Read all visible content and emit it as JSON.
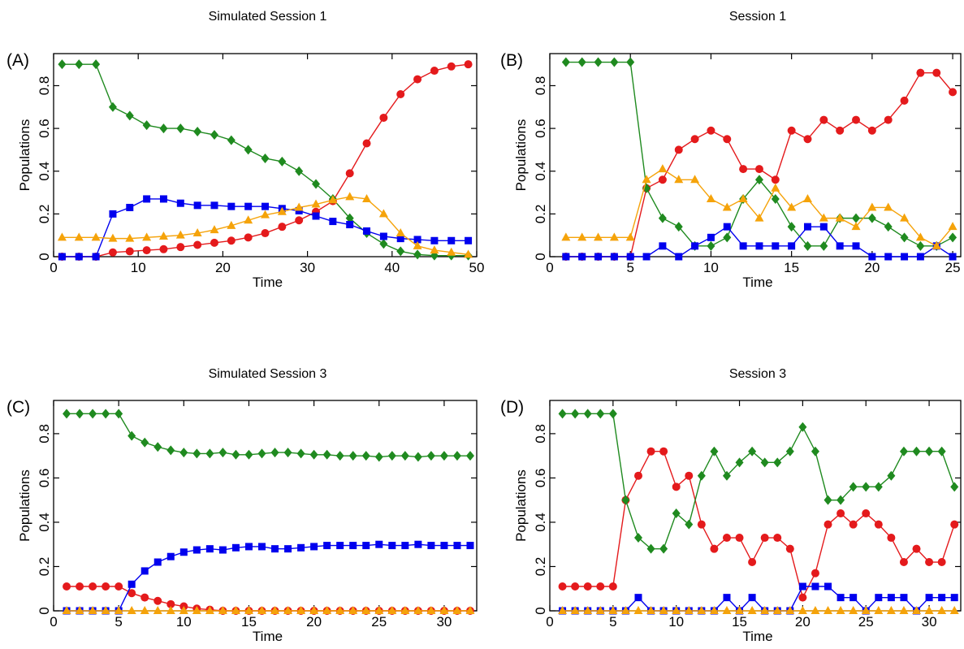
{
  "chart_data": [
    {
      "panel_label": "(A)",
      "type": "line",
      "title": "Simulated Session 1",
      "xlabel": "Time",
      "ylabel": "Populations",
      "xlim": [
        0,
        50
      ],
      "ylim": [
        0,
        0.95
      ],
      "xticks": [
        0,
        10,
        20,
        30,
        40,
        50
      ],
      "yticks": [
        0,
        0.2,
        0.4,
        0.6,
        0.8
      ],
      "ytick_labels": [
        "0",
        "0.2",
        "0.4",
        "0.6",
        "0.8"
      ],
      "x": [
        1,
        3,
        5,
        7,
        9,
        11,
        13,
        15,
        17,
        19,
        21,
        23,
        25,
        27,
        29,
        31,
        33,
        35,
        37,
        39,
        41,
        43,
        45,
        47,
        49
      ],
      "series": [
        {
          "color": "#e41a1c",
          "marker": "circle",
          "values": [
            0,
            0,
            0,
            0.02,
            0.025,
            0.03,
            0.035,
            0.045,
            0.055,
            0.065,
            0.075,
            0.09,
            0.11,
            0.14,
            0.17,
            0.21,
            0.26,
            0.39,
            0.53,
            0.65,
            0.76,
            0.83,
            0.87,
            0.89,
            0.9
          ]
        },
        {
          "color": "#1f8a1f",
          "marker": "diamond",
          "values": [
            0.9,
            0.9,
            0.9,
            0.7,
            0.66,
            0.615,
            0.6,
            0.6,
            0.585,
            0.57,
            0.545,
            0.5,
            0.46,
            0.445,
            0.4,
            0.34,
            0.27,
            0.18,
            0.11,
            0.06,
            0.025,
            0.01,
            0.005,
            0.005,
            0.005
          ]
        },
        {
          "color": "#0000ee",
          "marker": "square",
          "values": [
            0,
            0,
            0,
            0.2,
            0.23,
            0.27,
            0.27,
            0.25,
            0.24,
            0.24,
            0.235,
            0.235,
            0.235,
            0.225,
            0.215,
            0.19,
            0.165,
            0.15,
            0.12,
            0.095,
            0.085,
            0.08,
            0.075,
            0.075,
            0.075
          ]
        },
        {
          "color": "#f5a30a",
          "marker": "triangle",
          "values": [
            0.09,
            0.09,
            0.09,
            0.085,
            0.085,
            0.09,
            0.095,
            0.1,
            0.11,
            0.125,
            0.145,
            0.17,
            0.195,
            0.21,
            0.23,
            0.245,
            0.265,
            0.28,
            0.27,
            0.2,
            0.11,
            0.05,
            0.03,
            0.02,
            0.01
          ]
        }
      ]
    },
    {
      "panel_label": "(B)",
      "type": "line",
      "title": "Session 1",
      "xlabel": "Time",
      "ylabel": "Populations",
      "xlim": [
        0,
        25.5
      ],
      "ylim": [
        0,
        0.95
      ],
      "xticks": [
        0,
        5,
        10,
        15,
        20,
        25
      ],
      "yticks": [
        0,
        0.2,
        0.4,
        0.6,
        0.8
      ],
      "ytick_labels": [
        "0",
        "0.2",
        "0.4",
        "0.6",
        "0.8"
      ],
      "x": [
        1,
        2,
        3,
        4,
        5,
        6,
        7,
        8,
        9,
        10,
        11,
        12,
        13,
        14,
        15,
        16,
        17,
        18,
        19,
        20,
        21,
        22,
        23,
        24,
        25
      ],
      "series": [
        {
          "color": "#e41a1c",
          "marker": "circle",
          "values": [
            0,
            0,
            0,
            0,
            0,
            0.32,
            0.36,
            0.5,
            0.55,
            0.59,
            0.55,
            0.41,
            0.41,
            0.36,
            0.59,
            0.55,
            0.64,
            0.59,
            0.64,
            0.59,
            0.64,
            0.73,
            0.86,
            0.86,
            0.77
          ]
        },
        {
          "color": "#1f8a1f",
          "marker": "diamond",
          "values": [
            0.91,
            0.91,
            0.91,
            0.91,
            0.91,
            0.32,
            0.18,
            0.14,
            0.05,
            0.05,
            0.09,
            0.27,
            0.36,
            0.27,
            0.14,
            0.05,
            0.05,
            0.18,
            0.18,
            0.18,
            0.14,
            0.09,
            0.05,
            0.05,
            0.09
          ]
        },
        {
          "color": "#0000ee",
          "marker": "square",
          "values": [
            0,
            0,
            0,
            0,
            0,
            0,
            0.05,
            0,
            0.05,
            0.09,
            0.14,
            0.05,
            0.05,
            0.05,
            0.05,
            0.14,
            0.14,
            0.05,
            0.05,
            0,
            0,
            0,
            0,
            0.05,
            0
          ]
        },
        {
          "color": "#f5a30a",
          "marker": "triangle",
          "values": [
            0.09,
            0.09,
            0.09,
            0.09,
            0.09,
            0.36,
            0.41,
            0.36,
            0.36,
            0.27,
            0.23,
            0.27,
            0.18,
            0.32,
            0.23,
            0.27,
            0.18,
            0.18,
            0.14,
            0.23,
            0.23,
            0.18,
            0.09,
            0.05,
            0.14
          ]
        }
      ]
    },
    {
      "panel_label": "(C)",
      "type": "line",
      "title": "Simulated Session 3",
      "xlabel": "Time",
      "ylabel": "Populations",
      "xlim": [
        0,
        32.5
      ],
      "ylim": [
        0,
        0.95
      ],
      "xticks": [
        0,
        5,
        10,
        15,
        20,
        25,
        30
      ],
      "yticks": [
        0,
        0.2,
        0.4,
        0.6,
        0.8
      ],
      "ytick_labels": [
        "0",
        "0.2",
        "0.4",
        "0.6",
        "0.8"
      ],
      "x": [
        1,
        2,
        3,
        4,
        5,
        6,
        7,
        8,
        9,
        10,
        11,
        12,
        13,
        14,
        15,
        16,
        17,
        18,
        19,
        20,
        21,
        22,
        23,
        24,
        25,
        26,
        27,
        28,
        29,
        30,
        31,
        32
      ],
      "series": [
        {
          "color": "#e41a1c",
          "marker": "circle",
          "values": [
            0.11,
            0.11,
            0.11,
            0.11,
            0.11,
            0.08,
            0.06,
            0.045,
            0.03,
            0.02,
            0.01,
            0.005,
            0,
            0,
            0,
            0,
            0,
            0,
            0,
            0,
            0,
            0,
            0,
            0,
            0,
            0,
            0,
            0,
            0,
            0,
            0,
            0
          ]
        },
        {
          "color": "#1f8a1f",
          "marker": "diamond",
          "values": [
            0.89,
            0.89,
            0.89,
            0.89,
            0.89,
            0.79,
            0.76,
            0.74,
            0.725,
            0.715,
            0.71,
            0.71,
            0.715,
            0.705,
            0.705,
            0.71,
            0.715,
            0.715,
            0.71,
            0.705,
            0.705,
            0.7,
            0.7,
            0.7,
            0.695,
            0.7,
            0.7,
            0.695,
            0.7,
            0.7,
            0.7,
            0.7
          ]
        },
        {
          "color": "#0000ee",
          "marker": "square",
          "values": [
            0,
            0,
            0,
            0,
            0,
            0.12,
            0.18,
            0.22,
            0.245,
            0.265,
            0.275,
            0.28,
            0.275,
            0.285,
            0.29,
            0.29,
            0.28,
            0.28,
            0.285,
            0.29,
            0.295,
            0.295,
            0.295,
            0.295,
            0.3,
            0.295,
            0.295,
            0.3,
            0.295,
            0.295,
            0.295,
            0.295
          ]
        },
        {
          "color": "#f5a30a",
          "marker": "triangle",
          "values": [
            0,
            0,
            0,
            0,
            0,
            0,
            0,
            0,
            0,
            0,
            0,
            0,
            0,
            0,
            0,
            0,
            0,
            0,
            0,
            0,
            0,
            0,
            0,
            0,
            0,
            0,
            0,
            0,
            0,
            0,
            0,
            0
          ]
        }
      ]
    },
    {
      "panel_label": "(D)",
      "type": "line",
      "title": "Session 3",
      "xlabel": "Time",
      "ylabel": "Populations",
      "xlim": [
        0,
        32.5
      ],
      "ylim": [
        0,
        0.95
      ],
      "xticks": [
        0,
        5,
        10,
        15,
        20,
        25,
        30
      ],
      "yticks": [
        0,
        0.2,
        0.4,
        0.6,
        0.8
      ],
      "ytick_labels": [
        "0",
        "0.2",
        "0.4",
        "0.6",
        "0.8"
      ],
      "x": [
        1,
        2,
        3,
        4,
        5,
        6,
        7,
        8,
        9,
        10,
        11,
        12,
        13,
        14,
        15,
        16,
        17,
        18,
        19,
        20,
        21,
        22,
        23,
        24,
        25,
        26,
        27,
        28,
        29,
        30,
        31,
        32
      ],
      "series": [
        {
          "color": "#e41a1c",
          "marker": "circle",
          "values": [
            0.11,
            0.11,
            0.11,
            0.11,
            0.11,
            0.5,
            0.61,
            0.72,
            0.72,
            0.56,
            0.61,
            0.39,
            0.28,
            0.33,
            0.33,
            0.22,
            0.33,
            0.33,
            0.28,
            0.06,
            0.17,
            0.39,
            0.44,
            0.39,
            0.44,
            0.39,
            0.33,
            0.22,
            0.28,
            0.22,
            0.22,
            0.39
          ]
        },
        {
          "color": "#1f8a1f",
          "marker": "diamond",
          "values": [
            0.89,
            0.89,
            0.89,
            0.89,
            0.89,
            0.5,
            0.33,
            0.28,
            0.28,
            0.44,
            0.39,
            0.61,
            0.72,
            0.61,
            0.67,
            0.72,
            0.67,
            0.67,
            0.72,
            0.83,
            0.72,
            0.5,
            0.5,
            0.56,
            0.56,
            0.56,
            0.61,
            0.72,
            0.72,
            0.72,
            0.72,
            0.56
          ]
        },
        {
          "color": "#0000ee",
          "marker": "square",
          "values": [
            0,
            0,
            0,
            0,
            0,
            0,
            0.06,
            0,
            0,
            0,
            0,
            0,
            0,
            0.06,
            0,
            0.06,
            0,
            0,
            0,
            0.11,
            0.11,
            0.11,
            0.06,
            0.06,
            0,
            0.06,
            0.06,
            0.06,
            0,
            0.06,
            0.06,
            0.06
          ]
        },
        {
          "color": "#f5a30a",
          "marker": "triangle",
          "values": [
            0,
            0,
            0,
            0,
            0,
            0,
            0,
            0,
            0,
            0,
            0,
            0,
            0,
            0,
            0,
            0,
            0,
            0,
            0,
            0,
            0,
            0,
            0,
            0,
            0,
            0,
            0,
            0,
            0,
            0,
            0,
            0
          ]
        }
      ]
    }
  ]
}
